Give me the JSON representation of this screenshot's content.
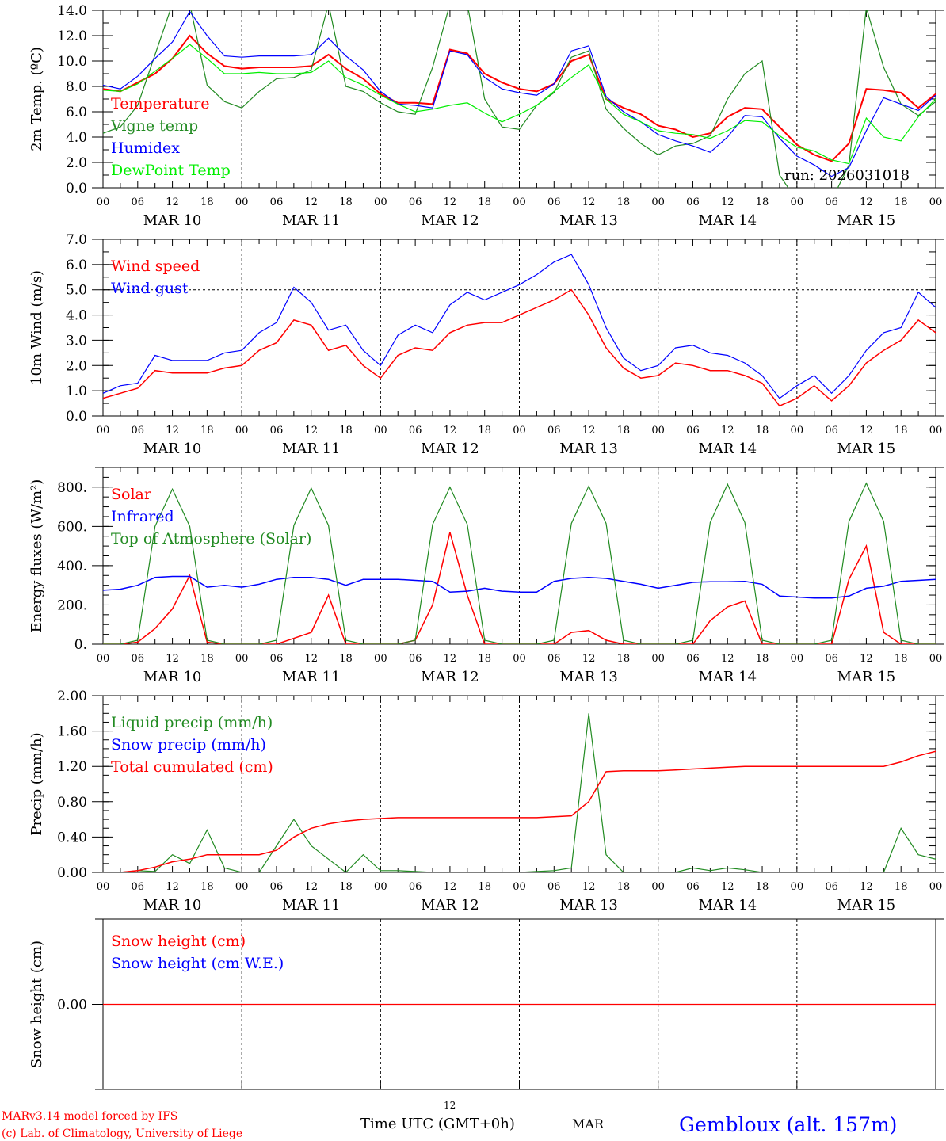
{
  "footer": {
    "model_line": "MARv3.14 model forced by IFS",
    "credit_line": "(c) Lab. of Climatology, University of Liege",
    "time_axis_label": "Time UTC (GMT+0h)",
    "time_axis_small": "12",
    "month_label": "MAR",
    "station": "Gembloux (alt. 157m)"
  },
  "run_label": "run: 2026031018",
  "hour_labels": [
    "00",
    "06",
    "12",
    "18"
  ],
  "final_hour_label": "00",
  "day_labels": [
    "MAR 10",
    "MAR 11",
    "MAR 12",
    "MAR 13",
    "MAR 14",
    "MAR 15"
  ],
  "colors": {
    "red": "#ff0000",
    "blue": "#0000ff",
    "dark_green": "#228b22",
    "light_green": "#00ee00",
    "black": "#000000"
  },
  "chart_data": [
    {
      "type": "line",
      "ylabel": "2m Temp. (ºC)",
      "x_hours_step": 3,
      "ylim": [
        0,
        14
      ],
      "yticks": [
        0,
        2,
        4,
        6,
        8,
        10,
        12,
        14
      ],
      "ytick_labels": [
        "0.0",
        "2.0",
        "4.0",
        "6.0",
        "8.0",
        "10.0",
        "12.0",
        "14.0"
      ],
      "series": [
        {
          "name": "Temperature",
          "color": "#ff0000",
          "width": 2,
          "values": [
            7.8,
            7.6,
            8.3,
            9.0,
            10.2,
            12.0,
            10.6,
            9.6,
            9.4,
            9.5,
            9.5,
            9.5,
            9.6,
            10.5,
            9.4,
            8.6,
            7.4,
            6.7,
            6.7,
            6.6,
            10.9,
            10.6,
            9.0,
            8.3,
            7.8,
            7.6,
            8.2,
            10.0,
            10.5,
            7.0,
            6.3,
            5.8,
            4.9,
            4.6,
            4.0,
            4.3,
            5.6,
            6.3,
            6.2,
            4.8,
            3.4,
            2.6,
            2.1,
            3.5,
            7.8,
            7.7,
            7.5,
            6.3,
            7.4
          ]
        },
        {
          "name": "Vigne temp",
          "color": "#228b22",
          "width": 1.2,
          "values": [
            4.3,
            4.8,
            6.5,
            10.5,
            14.5,
            14.5,
            8.1,
            6.8,
            6.3,
            7.6,
            8.6,
            8.7,
            9.3,
            14.5,
            8.0,
            7.6,
            6.7,
            6.0,
            5.8,
            9.5,
            14.5,
            14.5,
            7.0,
            4.8,
            4.6,
            6.5,
            7.5,
            10.3,
            10.8,
            6.2,
            4.7,
            3.5,
            2.6,
            3.3,
            3.5,
            4.1,
            7.0,
            9.0,
            10.0,
            1.0,
            -1,
            -1,
            -1,
            1.8,
            14.2,
            9.5,
            6.6,
            5.7,
            6.8
          ]
        },
        {
          "name": "Humidex",
          "color": "#0000ff",
          "width": 1.2,
          "values": [
            8.1,
            7.8,
            8.8,
            10.2,
            11.5,
            13.9,
            12.0,
            10.4,
            10.3,
            10.4,
            10.4,
            10.4,
            10.5,
            11.8,
            10.4,
            9.3,
            7.6,
            6.6,
            6.5,
            6.3,
            10.8,
            10.5,
            8.7,
            7.8,
            7.5,
            7.3,
            8.2,
            10.8,
            11.2,
            7.2,
            6.0,
            5.2,
            4.2,
            3.7,
            3.3,
            2.8,
            4.0,
            5.7,
            5.6,
            3.9,
            2.5,
            1.8,
            0.9,
            1.6,
            4.5,
            7.1,
            6.6,
            6.1,
            7.3
          ]
        },
        {
          "name": "DewPoint Temp",
          "color": "#00ee00",
          "width": 1.2,
          "values": [
            7.7,
            7.6,
            8.2,
            9.2,
            10.2,
            11.3,
            10.2,
            9.0,
            9.0,
            9.1,
            9.0,
            9.0,
            9.1,
            10.0,
            8.7,
            8.1,
            7.3,
            6.6,
            6.0,
            6.2,
            6.5,
            6.7,
            5.9,
            5.2,
            5.8,
            6.5,
            7.6,
            8.7,
            9.7,
            7.0,
            5.8,
            5.2,
            4.5,
            4.3,
            4.2,
            3.9,
            4.5,
            5.3,
            5.2,
            4.1,
            3.2,
            2.9,
            2.2,
            1.9,
            5.5,
            4.0,
            3.7,
            5.6,
            7.0
          ]
        }
      ]
    },
    {
      "type": "line",
      "ylabel": "10m Wind (m/s)",
      "x_hours_step": 3,
      "ylim": [
        0,
        7
      ],
      "yticks": [
        0,
        1,
        2,
        3,
        4,
        5,
        6,
        7
      ],
      "ytick_labels": [
        "0.0",
        "1.0",
        "2.0",
        "3.0",
        "4.0",
        "5.0",
        "6.0",
        "7.0"
      ],
      "reference_line": 5.0,
      "series": [
        {
          "name": "Wind speed",
          "color": "#ff0000",
          "width": 1.5,
          "values": [
            0.7,
            0.9,
            1.1,
            1.8,
            1.7,
            1.7,
            1.7,
            1.9,
            2.0,
            2.6,
            2.9,
            3.8,
            3.6,
            2.6,
            2.8,
            2.0,
            1.5,
            2.4,
            2.7,
            2.6,
            3.3,
            3.6,
            3.7,
            3.7,
            4.0,
            4.3,
            4.6,
            5.0,
            4.0,
            2.7,
            1.9,
            1.5,
            1.6,
            2.1,
            2.0,
            1.8,
            1.8,
            1.6,
            1.3,
            0.4,
            0.7,
            1.2,
            0.6,
            1.2,
            2.1,
            2.6,
            3.0,
            3.8,
            3.3
          ]
        },
        {
          "name": "Wind gust",
          "color": "#0000ff",
          "width": 1.2,
          "values": [
            0.9,
            1.2,
            1.3,
            2.4,
            2.2,
            2.2,
            2.2,
            2.5,
            2.6,
            3.3,
            3.7,
            5.1,
            4.5,
            3.4,
            3.6,
            2.6,
            2.0,
            3.2,
            3.6,
            3.3,
            4.4,
            4.9,
            4.6,
            4.9,
            5.2,
            5.6,
            6.1,
            6.4,
            5.2,
            3.5,
            2.3,
            1.8,
            2.0,
            2.7,
            2.8,
            2.5,
            2.4,
            2.1,
            1.6,
            0.7,
            1.2,
            1.6,
            0.9,
            1.6,
            2.6,
            3.3,
            3.5,
            4.9,
            4.3
          ]
        }
      ]
    },
    {
      "type": "line",
      "ylabel": "Energy fluxes (W/m²)",
      "x_hours_step": 3,
      "ylim": [
        0,
        900
      ],
      "yticks": [
        0,
        200,
        400,
        600,
        800
      ],
      "ytick_labels": [
        "0.",
        "200.",
        "400.",
        "600.",
        "800."
      ],
      "series": [
        {
          "name": "Solar",
          "color": "#ff0000",
          "width": 1.5,
          "values": [
            0,
            0,
            10,
            80,
            180,
            350,
            10,
            0,
            0,
            0,
            0,
            30,
            60,
            250,
            0,
            0,
            0,
            0,
            20,
            200,
            570,
            250,
            0,
            0,
            0,
            0,
            0,
            60,
            70,
            20,
            0,
            0,
            0,
            0,
            0,
            120,
            190,
            220,
            0,
            0,
            0,
            0,
            0,
            330,
            500,
            60,
            0,
            0,
            0
          ]
        },
        {
          "name": "Infrared",
          "color": "#0000ff",
          "width": 1.5,
          "values": [
            275,
            280,
            300,
            340,
            345,
            345,
            290,
            300,
            290,
            305,
            330,
            340,
            340,
            330,
            300,
            330,
            330,
            330,
            325,
            320,
            265,
            270,
            285,
            270,
            265,
            265,
            320,
            335,
            340,
            335,
            320,
            305,
            285,
            300,
            315,
            318,
            318,
            320,
            305,
            245,
            240,
            235,
            235,
            245,
            285,
            295,
            320,
            325,
            330
          ]
        },
        {
          "name": "Top of Atmosphere (Solar)",
          "color": "#228b22",
          "width": 1.2,
          "values": [
            0,
            0,
            20,
            600,
            790,
            600,
            20,
            0,
            0,
            0,
            20,
            605,
            795,
            605,
            20,
            0,
            0,
            0,
            20,
            610,
            800,
            610,
            20,
            0,
            0,
            0,
            20,
            615,
            805,
            615,
            20,
            0,
            0,
            0,
            20,
            620,
            815,
            620,
            20,
            0,
            0,
            0,
            20,
            625,
            820,
            625,
            20,
            0,
            0
          ]
        }
      ]
    },
    {
      "type": "line",
      "ylabel": "Precip (mm/h)",
      "x_hours_step": 3,
      "ylim": [
        0,
        2
      ],
      "yticks": [
        0,
        0.4,
        0.8,
        1.2,
        1.6,
        2.0
      ],
      "ytick_labels": [
        "0.00",
        "0.40",
        "0.80",
        "1.20",
        "1.60",
        "2.00"
      ],
      "series": [
        {
          "name": "Liquid precip (mm/h)",
          "color": "#228b22",
          "width": 1.2,
          "values": [
            0,
            0,
            0.02,
            0.01,
            0.2,
            0.1,
            0.48,
            0.05,
            0,
            0,
            0.3,
            0.6,
            0.3,
            0.15,
            0,
            0.2,
            0.02,
            0.02,
            0.01,
            0,
            0,
            0,
            0,
            0,
            0,
            0.01,
            0.02,
            0.05,
            1.8,
            0.2,
            0,
            0,
            0,
            0,
            0.05,
            0.02,
            0.05,
            0.03,
            0,
            0,
            0,
            0,
            0,
            0,
            0,
            0,
            0.5,
            0.2,
            0.15
          ]
        },
        {
          "name": "Snow precip (mm/h)",
          "color": "#0000ff",
          "width": 1.2,
          "values": [
            0,
            0,
            0,
            0,
            0,
            0,
            0,
            0,
            0,
            0,
            0,
            0,
            0,
            0,
            0,
            0,
            0,
            0,
            0,
            0,
            0,
            0,
            0,
            0,
            0,
            0,
            0,
            0,
            0,
            0,
            0,
            0,
            0,
            0,
            0,
            0,
            0,
            0,
            0,
            0,
            0,
            0,
            0,
            0,
            0,
            0,
            0,
            0,
            0
          ]
        },
        {
          "name": "Total cumulated (cm)",
          "color": "#ff0000",
          "width": 1.5,
          "values": [
            0,
            0,
            0.02,
            0.06,
            0.12,
            0.15,
            0.2,
            0.2,
            0.2,
            0.2,
            0.25,
            0.4,
            0.5,
            0.55,
            0.58,
            0.6,
            0.61,
            0.62,
            0.62,
            0.62,
            0.62,
            0.62,
            0.62,
            0.62,
            0.62,
            0.62,
            0.63,
            0.64,
            0.8,
            1.14,
            1.15,
            1.15,
            1.15,
            1.16,
            1.17,
            1.18,
            1.19,
            1.2,
            1.2,
            1.2,
            1.2,
            1.2,
            1.2,
            1.2,
            1.2,
            1.2,
            1.25,
            1.32,
            1.37
          ]
        }
      ]
    },
    {
      "type": "line",
      "ylabel": "Snow height (cm)",
      "x_hours_step": 3,
      "ylim": [
        -1,
        1
      ],
      "yticks": [
        0
      ],
      "ytick_labels": [
        "0.00"
      ],
      "series": [
        {
          "name": "Snow height (cm)",
          "color": "#ff0000",
          "width": 1.2,
          "values": [
            0,
            0,
            0,
            0,
            0,
            0,
            0,
            0,
            0,
            0,
            0,
            0,
            0,
            0,
            0,
            0,
            0,
            0,
            0,
            0,
            0,
            0,
            0,
            0,
            0,
            0,
            0,
            0,
            0,
            0,
            0,
            0,
            0,
            0,
            0,
            0,
            0,
            0,
            0,
            0,
            0,
            0,
            0,
            0,
            0,
            0,
            0,
            0,
            0
          ]
        },
        {
          "name": "Snow height (cm W.E.)",
          "color": "#0000ff",
          "width": 0,
          "values": [
            0,
            0,
            0,
            0,
            0,
            0,
            0,
            0,
            0,
            0,
            0,
            0,
            0,
            0,
            0,
            0,
            0,
            0,
            0,
            0,
            0,
            0,
            0,
            0,
            0,
            0,
            0,
            0,
            0,
            0,
            0,
            0,
            0,
            0,
            0,
            0,
            0,
            0,
            0,
            0,
            0,
            0,
            0,
            0,
            0,
            0,
            0,
            0,
            0
          ]
        }
      ]
    }
  ]
}
